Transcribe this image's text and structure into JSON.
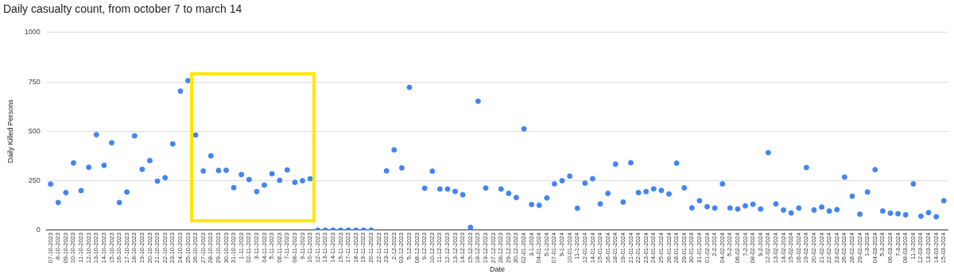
{
  "chart_data": {
    "type": "scatter",
    "title": "Daily casualty count, from october 7 to march 14",
    "xlabel": "Date",
    "ylabel": "Daily Killed Persons",
    "categories": [
      "07-10-2023",
      "8-10-2023",
      "09-10-2023",
      "10-10-2023",
      "11-10-2023",
      "12-10-2023",
      "13-10-2023",
      "14-10-2023",
      "15-10-2023",
      "16-10-2023",
      "17-10-2023",
      "18-10-2023",
      "19-10-2023",
      "20-10-2023",
      "21-10-2023",
      "22-10-2023",
      "23-10-2023",
      "24-10-2023",
      "25-10-2023",
      "26-10-2023",
      "27-10-2023",
      "28-10-2023",
      "29-10-2023",
      "30-10-2023",
      "31-10-2023",
      "1-11-2023",
      "02-11-2023",
      "3-11-2023",
      "04-11-2023",
      "5-11-2023",
      "06-11-2023",
      "7-11-2023",
      "08-11-2023",
      "9-11-2023",
      "10-11-2023",
      "12-11-2023",
      "13-11-2023",
      "14-11-2023",
      "15-11-2023",
      "17-11-2023",
      "18-11-2023",
      "19-11-2023",
      "20-11-2023",
      "22-11-2023",
      "23-11-2023",
      "2-12-2023",
      "03-12-2023",
      "5-12-2023",
      "08-12-2023",
      "9-12-2023",
      "10-12-2023",
      "11-12-2023",
      "12-12-2023",
      "13-12-2023",
      "14-12-2023",
      "15-12-2023",
      "18-12-2023",
      "19-12-2023",
      "27-12-2023",
      "28-12-2023",
      "29-12-2023",
      "30-12-2023",
      "02-01-2024",
      "3-1-2024",
      "04-01-2024",
      "5-1-2024",
      "07-01-2024",
      "9-1-2024",
      "10-01-2024",
      "11-1-2024",
      "12-01-2024",
      "14-01-2024",
      "15-01-2024",
      "16-01-2024",
      "18-01-2024",
      "19-01-2024",
      "21-01-2024",
      "22-01-2024",
      "23-01-2024",
      "24-01-2024",
      "25-01-2024",
      "26-01-2024",
      "28-01-2024",
      "29-01-2024",
      "30-01-2024",
      "31-01-2024",
      "01-02-2024",
      "2-2-2024",
      "04-02-2024",
      "5-2-2024",
      "06-02-2024",
      "7-2-2024",
      "08-02-2024",
      "9-2-2024",
      "12-02-2024",
      "13-02-2024",
      "14-02-2024",
      "15-02-2024",
      "16-02-2024",
      "19-02-2024",
      "20-02-2024",
      "21-02-2024",
      "22-02-2024",
      "23-02-2024",
      "26-02-2024",
      "28-02-2024",
      "29-02-2024",
      "1-3-2024",
      "04-03-2024",
      "5-3-2024",
      "06-03-2024",
      "7-3-2024",
      "08-03-2024",
      "11-3-2024",
      "12-03-2024",
      "13-03-2024",
      "14-03-2024",
      "15-03-2024"
    ],
    "series": [
      {
        "color": "#4285f4",
        "values": [
          233,
          140,
          190,
          340,
          200,
          318,
          483,
          328,
          442,
          140,
          193,
          477,
          308,
          352,
          248,
          265,
          436,
          703,
          756,
          481,
          299,
          376,
          302,
          303,
          215,
          281,
          256,
          195,
          228,
          285,
          252,
          305,
          242,
          250,
          260,
          0,
          0,
          0,
          0,
          0,
          0,
          0,
          0,
          null,
          300,
          406,
          315,
          722,
          null,
          212,
          298,
          208,
          208,
          196,
          179,
          14,
          652,
          213,
          null,
          208,
          186,
          165,
          512,
          130,
          126,
          163,
          234,
          250,
          273,
          111,
          238,
          260,
          133,
          186,
          334,
          142,
          341,
          190,
          195,
          209,
          201,
          183,
          339,
          214,
          113,
          149,
          119,
          112,
          234,
          112,
          107,
          123,
          131,
          107,
          392,
          133,
          102,
          87,
          112,
          317,
          102,
          117,
          97,
          104,
          268,
          172,
          81,
          193,
          306,
          97,
          86,
          83,
          78,
          234,
          71,
          89,
          68,
          149
        ]
      }
    ],
    "ylim": [
      0,
      1000
    ],
    "yticks": [
      0,
      250,
      500,
      750,
      1000
    ],
    "grid": "y",
    "marker": "circle"
  }
}
